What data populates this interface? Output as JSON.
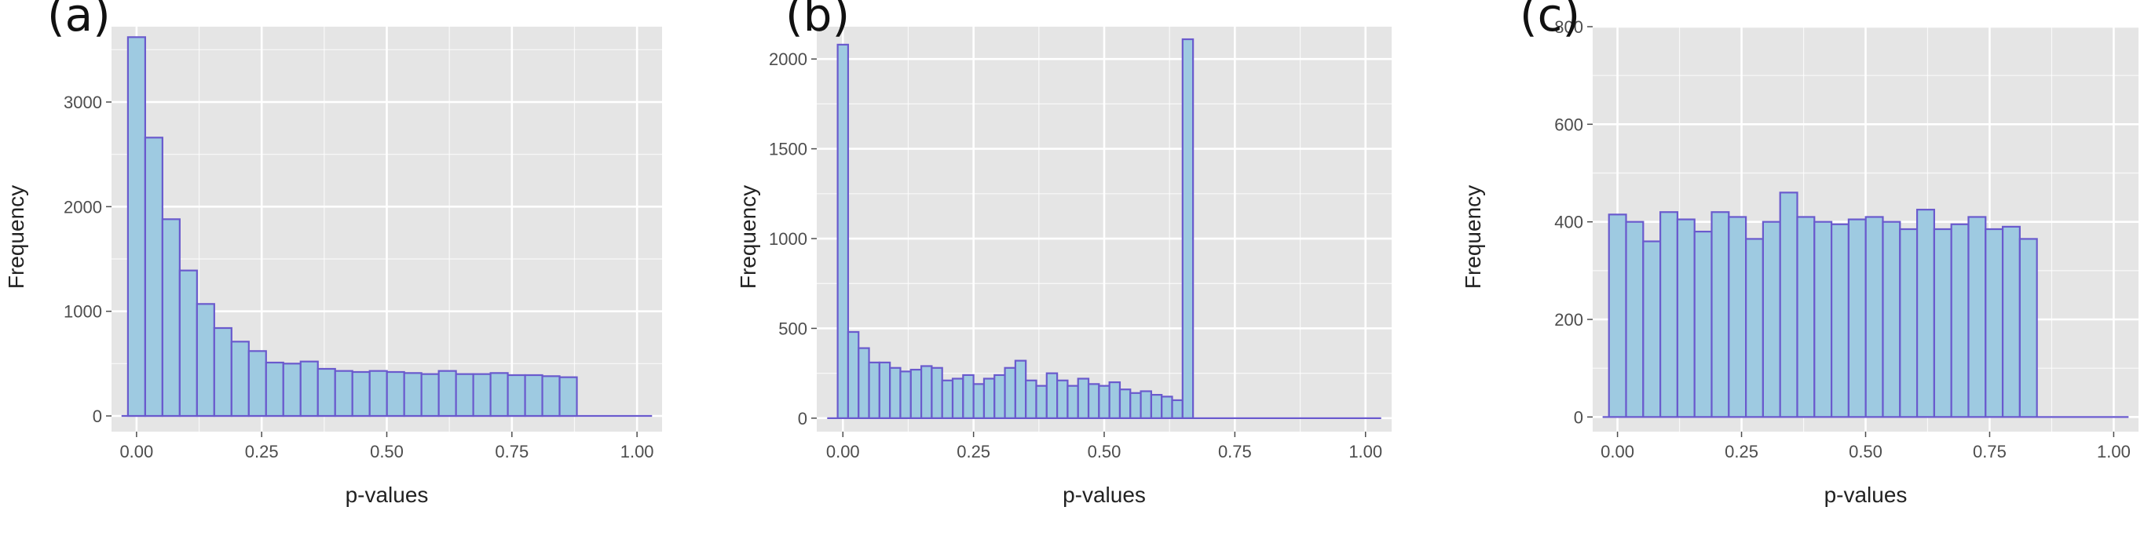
{
  "panels": [
    {
      "label": "(a)"
    },
    {
      "label": "(b)"
    },
    {
      "label": "(c)"
    }
  ],
  "colors": {
    "panel_background": "#e5e5e5",
    "grid_line": "#ffffff",
    "bar_fill": "#9ecae1",
    "bar_stroke": "#6a5acd",
    "tick_label": "#4d4d4d"
  },
  "chart_data": [
    {
      "type": "bar",
      "xlabel": "p-values",
      "ylabel": "Frequency",
      "xlim": [
        -0.05,
        1.05
      ],
      "ylim": [
        -150,
        3720
      ],
      "x_ticks": [
        "0.00",
        "0.25",
        "0.50",
        "0.75",
        "1.00"
      ],
      "y_ticks": [
        "0",
        "1000",
        "2000",
        "3000"
      ],
      "grid": true,
      "bin_width": 0.0345,
      "bin_start": -0.0172,
      "values": [
        3620,
        2660,
        1880,
        1390,
        1070,
        840,
        710,
        620,
        510,
        500,
        520,
        450,
        430,
        420,
        430,
        420,
        410,
        400,
        430,
        400,
        400,
        410,
        390,
        390,
        380,
        370
      ]
    },
    {
      "type": "bar",
      "xlabel": "p-values",
      "ylabel": "Frequency",
      "xlim": [
        -0.05,
        1.05
      ],
      "ylim": [
        -75,
        2180
      ],
      "x_ticks": [
        "0.00",
        "0.25",
        "0.50",
        "0.75",
        "1.00"
      ],
      "y_ticks": [
        "0",
        "500",
        "1000",
        "1500",
        "2000"
      ],
      "grid": true,
      "bin_width": 0.02,
      "bin_start": -0.01,
      "values": [
        2080,
        480,
        390,
        310,
        310,
        280,
        260,
        270,
        290,
        280,
        210,
        220,
        240,
        190,
        220,
        240,
        280,
        320,
        210,
        180,
        250,
        210,
        180,
        220,
        190,
        180,
        200,
        160,
        140,
        150,
        130,
        120,
        100,
        2110
      ]
    },
    {
      "type": "bar",
      "xlabel": "p-values",
      "ylabel": "Frequency",
      "xlim": [
        -0.05,
        1.05
      ],
      "ylim": [
        -30,
        800
      ],
      "x_ticks": [
        "0.00",
        "0.25",
        "0.50",
        "0.75",
        "1.00"
      ],
      "y_ticks": [
        "0",
        "200",
        "400",
        "600",
        "800"
      ],
      "grid": true,
      "bin_width": 0.0345,
      "bin_start": -0.0172,
      "values": [
        415,
        400,
        360,
        420,
        405,
        380,
        420,
        410,
        365,
        400,
        460,
        410,
        400,
        395,
        405,
        410,
        400,
        385,
        425,
        385,
        395,
        410,
        385,
        390,
        365
      ]
    }
  ]
}
